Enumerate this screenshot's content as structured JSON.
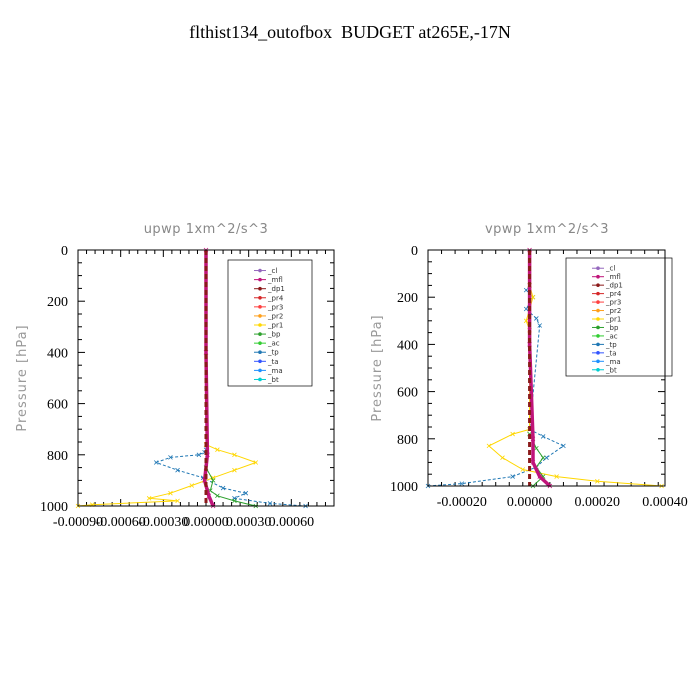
{
  "title": "flthist134_outofbox  BUDGET at265E,-17N",
  "legend_entries": [
    "_cl",
    "_mfl",
    "_dp1",
    "_pr4",
    "_pr3",
    "_pr2",
    "_pr1",
    "_bp",
    "_ac",
    "_tp",
    "_ta",
    "_ma",
    "_bt"
  ],
  "series_colors": {
    "_cl": "#9467bd",
    "_mfl": "#c0147a",
    "_dp1": "#8b1a1a",
    "_pr4": "#d62728",
    "_pr3": "#ff4040",
    "_pr2": "#ff9f1a",
    "_pr1": "#ffd700",
    "_bp": "#2ca02c",
    "_ac": "#32cd32",
    "_tp": "#1f77b4",
    "_ta": "#3355ff",
    "_ma": "#1e90ff",
    "_bt": "#00ced1"
  },
  "chart_data": [
    {
      "type": "line",
      "title": "upwp   1xm^2/s^3",
      "ylabel": "Pressure [hPa]",
      "xlabel": "",
      "xlim": [
        -0.0009,
        0.0009
      ],
      "ylim": [
        1000,
        0
      ],
      "y_inverted": true,
      "xticks": [
        -0.0009,
        -0.0006,
        -0.0003,
        0.0,
        0.0003,
        0.0006
      ],
      "xtick_labels": [
        "-0.00090",
        "-0.00060",
        "-0.00030",
        "0.00000",
        "0.00030",
        "0.00060"
      ],
      "yticks": [
        0,
        200,
        400,
        600,
        800,
        1000
      ],
      "ytick_labels": [
        "0",
        "200",
        "400",
        "600",
        "800",
        "1000"
      ],
      "legend": "top-right",
      "series": [
        {
          "name": "_tp",
          "x": [
            0.0,
            -1e-05,
            -5e-05,
            -0.00025,
            -0.00035,
            -0.0002,
            -2e-05,
            0.00012,
            0.00028,
            0.0002,
            0.00045,
            0.0007
          ],
          "y": [
            780,
            790,
            800,
            810,
            830,
            860,
            890,
            930,
            950,
            970,
            990,
            1000
          ]
        },
        {
          "name": "_pr1",
          "x": [
            0.0,
            8e-05,
            0.0002,
            0.00035,
            0.0002,
            5e-05,
            -0.0001,
            -0.00025,
            -0.0004,
            -0.0002,
            -0.0008,
            -0.0009
          ],
          "y": [
            760,
            780,
            800,
            830,
            860,
            890,
            920,
            950,
            970,
            980,
            995,
            1000
          ]
        },
        {
          "name": "_bp",
          "x": [
            0.0,
            5e-05,
            3e-05,
            8e-05,
            0.0002,
            0.00035
          ],
          "y": [
            850,
            900,
            940,
            960,
            980,
            1000
          ]
        },
        {
          "name": "_mfl",
          "x": [
            0.0,
            0.0,
            1e-05,
            -1e-05,
            2e-05,
            5e-05
          ],
          "y": [
            0,
            400,
            800,
            900,
            960,
            1000
          ]
        }
      ]
    },
    {
      "type": "line",
      "title": "vpwp   1xm^2/s^3",
      "ylabel": "Pressure [hPa]",
      "xlabel": "",
      "xlim": [
        -0.0003,
        0.0004
      ],
      "ylim": [
        1000,
        0
      ],
      "y_inverted": true,
      "xticks": [
        -0.0002,
        0.0,
        0.0002,
        0.0004
      ],
      "xtick_labels": [
        "-0.00020",
        "0.00000",
        "0.00020",
        "0.00040"
      ],
      "yticks": [
        0,
        200,
        400,
        600,
        800,
        1000
      ],
      "ytick_labels": [
        "0",
        "200",
        "400",
        "600",
        "800",
        "1000"
      ],
      "legend": "top-right",
      "series": [
        {
          "name": "_tp",
          "x": [
            0.0,
            -1e-05,
            1e-05,
            -1e-05,
            2e-05,
            3e-05,
            0.0,
            4e-05,
            0.0001,
            5e-05,
            2e-05,
            -5e-05,
            -0.0002,
            -0.0003
          ],
          "y": [
            150,
            170,
            200,
            250,
            290,
            320,
            760,
            790,
            830,
            880,
            920,
            960,
            990,
            1000
          ]
        },
        {
          "name": "_pr1",
          "x": [
            0.0,
            1e-05,
            -1e-05,
            0.0,
            0.0,
            -5e-05,
            -0.00012,
            -8e-05,
            -2e-05,
            8e-05,
            0.0002,
            0.00039
          ],
          "y": [
            150,
            200,
            300,
            340,
            760,
            780,
            830,
            880,
            930,
            960,
            980,
            1000
          ]
        },
        {
          "name": "_bp",
          "x": [
            0.0,
            2e-05,
            4e-05,
            2e-05,
            4e-05,
            1e-05
          ],
          "y": [
            780,
            840,
            880,
            920,
            960,
            1000
          ]
        },
        {
          "name": "_mfl",
          "x": [
            0.0,
            0.0,
            1e-05,
            1e-05,
            3e-05,
            6e-05
          ],
          "y": [
            0,
            400,
            800,
            900,
            960,
            1000
          ]
        }
      ]
    }
  ]
}
